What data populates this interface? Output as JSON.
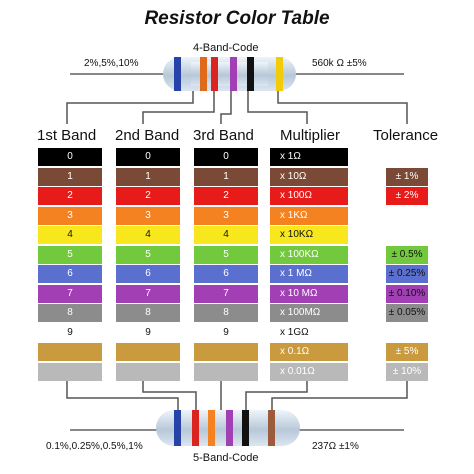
{
  "title": "Resistor Color Table",
  "top_resistor": {
    "label": "4-Band-Code",
    "left_note": "2%,5%,10%",
    "right_note": "560k Ω  ±5%"
  },
  "bottom_resistor": {
    "label": "5-Band-Code",
    "left_note": "0.1%,0.25%,0.5%,1%",
    "right_note": "237Ω  ±1%"
  },
  "headers": {
    "band1": "1st Band",
    "band2": "2nd Band",
    "band3": "3rd Band",
    "multiplier": "Multiplier",
    "tolerance": "Tolerance"
  },
  "rows": [
    {
      "color": "#000000",
      "text_color": "#ffffff",
      "digit": "0",
      "multiplier": "x 1Ω"
    },
    {
      "color": "#7b4a36",
      "text_color": "#ffffff",
      "digit": "1",
      "multiplier": "x 10Ω"
    },
    {
      "color": "#e81b1b",
      "text_color": "#ffffff",
      "digit": "2",
      "multiplier": "x 100Ω"
    },
    {
      "color": "#f58220",
      "text_color": "#ffffff",
      "digit": "3",
      "multiplier": "x 1KΩ"
    },
    {
      "color": "#f8e71c",
      "text_color": "#111111",
      "digit": "4",
      "multiplier": "x 10KΩ"
    },
    {
      "color": "#72c93e",
      "text_color": "#ffffff",
      "digit": "5",
      "multiplier": "x 100KΩ"
    },
    {
      "color": "#5b6fce",
      "text_color": "#ffffff",
      "digit": "6",
      "multiplier": "x 1 MΩ"
    },
    {
      "color": "#a23fb5",
      "text_color": "#ffffff",
      "digit": "7",
      "multiplier": "x 10 MΩ"
    },
    {
      "color": "#8c8c8c",
      "text_color": "#ffffff",
      "digit": "8",
      "multiplier": "x 100MΩ"
    },
    {
      "color": "#ffffff",
      "text_color": "#111111",
      "digit": "9",
      "multiplier": "x 1GΩ"
    },
    {
      "color": "#c99a3e",
      "text_color": "#ffffff",
      "digit": "",
      "multiplier": "x 0.1Ω"
    },
    {
      "color": "#b9b9b9",
      "text_color": "#ffffff",
      "digit": "",
      "multiplier": "x 0.01Ω"
    }
  ],
  "tolerance": [
    {
      "row": 1,
      "color": "#7b4a36",
      "text_color": "#ffffff",
      "label": "± 1%"
    },
    {
      "row": 2,
      "color": "#e81b1b",
      "text_color": "#ffffff",
      "label": "± 2%"
    },
    {
      "row": 5,
      "color": "#72c93e",
      "text_color": "#111111",
      "label": "± 0.5%"
    },
    {
      "row": 6,
      "color": "#5b6fce",
      "text_color": "#111111",
      "label": "± 0.25%"
    },
    {
      "row": 7,
      "color": "#a23fb5",
      "text_color": "#111111",
      "label": "± 0.10%"
    },
    {
      "row": 8,
      "color": "#8c8c8c",
      "text_color": "#111111",
      "label": "± 0.05%"
    },
    {
      "row": 10,
      "color": "#c99a3e",
      "text_color": "#ffffff",
      "label": "± 5%"
    },
    {
      "row": 11,
      "color": "#b9b9b9",
      "text_color": "#ffffff",
      "label": "± 10%"
    }
  ],
  "top_bands": [
    "#2742a8",
    "#e06a1c",
    "#d9241f",
    "#a23fb5",
    "#111111",
    "#f2cc0a"
  ],
  "bottom_bands": [
    "#2742a8",
    "#d9241f",
    "#f58220",
    "#a23fb5",
    "#111111",
    "#9a5c3a"
  ]
}
